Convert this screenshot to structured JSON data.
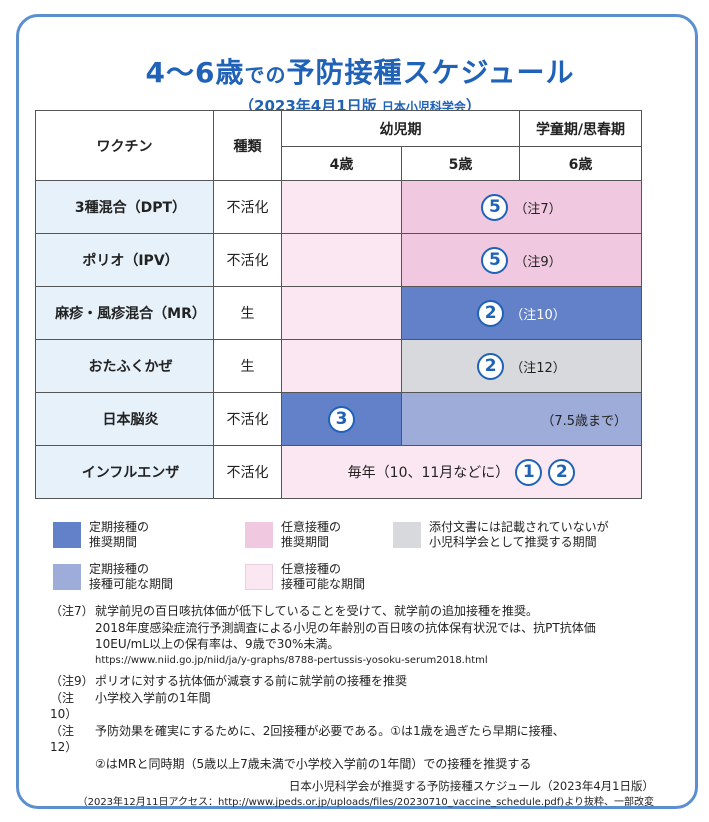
{
  "title": {
    "main_a": "4",
    "main_tilde": "〜",
    "main_b": "6歳",
    "de": "での",
    "main_c": "予防接種スケジュール"
  },
  "subtitle": {
    "date": "（2023年4月1日版",
    "org": "日本小児科学会",
    "close": "）"
  },
  "table": {
    "headers": {
      "vaccine": "ワクチン",
      "type": "種類",
      "toddler": "幼児期",
      "school": "学童期/思春期",
      "age4": "4歳",
      "age5": "5歳",
      "age6": "6歳"
    },
    "rows": [
      {
        "name": "3種混合（DPT）",
        "type": "不活化",
        "dose": "5",
        "note": "（注7）"
      },
      {
        "name": "ポリオ（IPV）",
        "type": "不活化",
        "dose": "5",
        "note": "（注9）"
      },
      {
        "name": "麻疹・風疹混合（MR）",
        "type": "生",
        "dose": "2",
        "note": "（注10）"
      },
      {
        "name": "おたふくかぜ",
        "type": "生",
        "dose": "2",
        "note": "（注12）"
      },
      {
        "name": "日本脳炎",
        "type": "不活化",
        "dose": "3",
        "note": "（7.5歳まで）"
      },
      {
        "name": "インフルエンザ",
        "type": "不活化",
        "text": "毎年（10、11月などに）",
        "dose_a": "1",
        "dose_b": "2"
      }
    ]
  },
  "legend": {
    "items": [
      {
        "label_a": "定期接種の",
        "label_b": "推奨期間",
        "color": "#6281c8"
      },
      {
        "label_a": "任意接種の",
        "label_b": "推奨期間",
        "color": "#f0c9e1"
      },
      {
        "label_a": "添付文書には記載されていないが",
        "label_b": "小児科学会として推奨する期間",
        "color": "#d7d9dc"
      },
      {
        "label_a": "定期接種の",
        "label_b": "接種可能な期間",
        "color": "#9dacd8"
      },
      {
        "label_a": "任意接種の",
        "label_b": "接種可能な期間",
        "color": "#fbe7f1"
      }
    ]
  },
  "notes": {
    "n7_key": "（注7）",
    "n7_a": "就学前児の百日咳抗体価が低下していることを受けて、就学前の追加接種を推奨。",
    "n7_b": "2018年度感染症流行予測調査による小児の年齢別の百日咳の抗体保有状況では、抗PT抗体価",
    "n7_c": "10EU/mL以上の保有率は、9歳で30%未満。",
    "n7_url": "https://www.niid.go.jp/niid/ja/y-graphs/8788-pertussis-yosoku-serum2018.html",
    "n9_key": "（注9）",
    "n9": "ポリオに対する抗体価が減衰する前に就学前の接種を推奨",
    "n10_key": "（注10）",
    "n10": "小学校入学前の1年間",
    "n12_key": "（注12）",
    "n12_a": "予防効果を確実にするために、2回接種が必要である。①は1歳を過ぎたら早期に接種、",
    "n12_b": "②はMRと同時期（5歳以上7歳未満で小学校入学前の1年間）での接種を推奨する",
    "source": "日本小児科学会が推奨する予防接種スケジュール（2023年4月1日版）",
    "access": "（2023年12月11日アクセス：http://www.jpeds.or.jp/uploads/files/20230710_vaccine_schedule.pdf)より抜粋、一部改変"
  }
}
